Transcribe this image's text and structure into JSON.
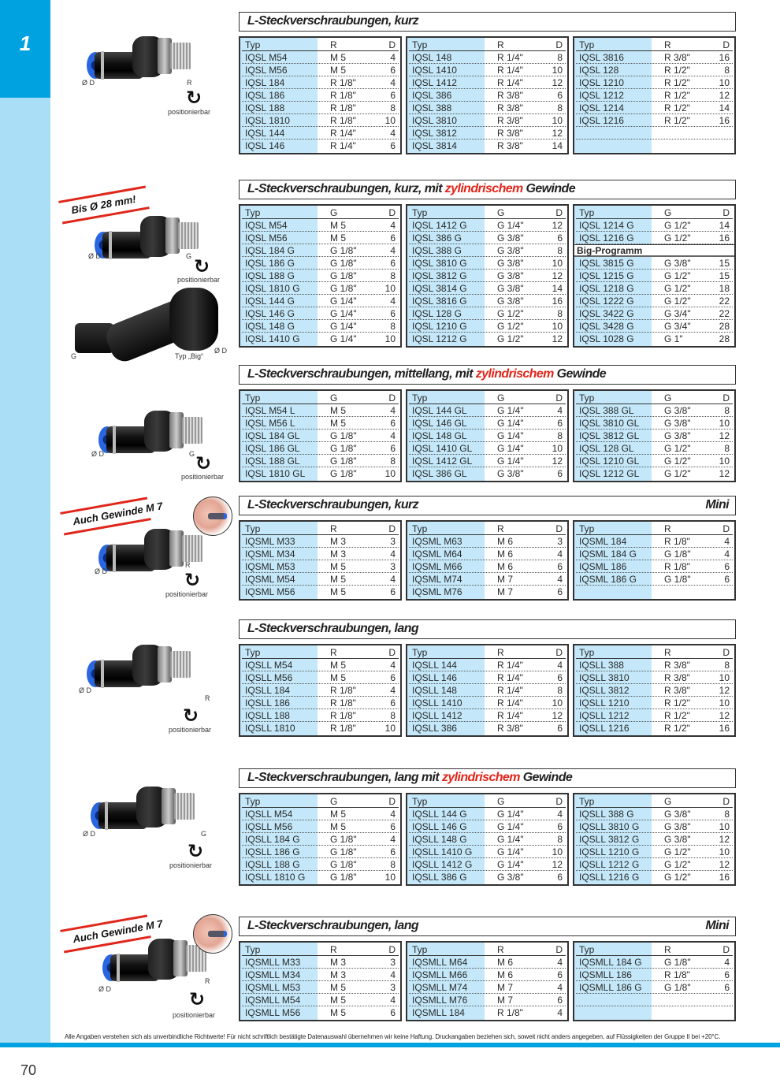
{
  "chapter_tab": "1",
  "page_number": "70",
  "footnote": "Alle Angaben verstehen sich als unverbindliche Richtwerte! Für nicht schriftlich bestätigte Datenauswahl übernehmen wir keine Haftung. Druckangaben beziehen sich, soweit nicht anders angegeben, auf Flüssigkeiten der Gruppe II bei +20°C.",
  "colors": {
    "accent_blue": "#00a3e0",
    "strip_blue": "#a9def6",
    "typ_column": "#c4e8f9",
    "highlight_red": "#e0261b"
  },
  "sections": [
    {
      "title_prefix": "L-Steckverschraubungen, kurz",
      "title_highlight": "",
      "title_suffix": "",
      "badge": "",
      "image": {
        "diameter_label": "Ø D",
        "thread_label": "R",
        "positionable_label": "positionierbar",
        "rotate_icon": "rotate-arrow-icon"
      },
      "tables": [
        {
          "headers": [
            "Typ",
            "R",
            "D"
          ],
          "rows": [
            [
              "IQSL M54",
              "M 5",
              "4"
            ],
            [
              "IQSL M56",
              "M 5",
              "6"
            ],
            [
              "IQSL 184",
              "R 1/8\"",
              "4"
            ],
            [
              "IQSL 186",
              "R 1/8\"",
              "6"
            ],
            [
              "IQSL 188",
              "R 1/8\"",
              "8"
            ],
            [
              "IQSL 1810",
              "R 1/8\"",
              "10"
            ],
            [
              "IQSL 144",
              "R 1/4\"",
              "4"
            ],
            [
              "IQSL 146",
              "R 1/4\"",
              "6"
            ]
          ]
        },
        {
          "headers": [
            "Typ",
            "R",
            "D"
          ],
          "rows": [
            [
              "IQSL 148",
              "R 1/4\"",
              "8"
            ],
            [
              "IQSL 1410",
              "R 1/4\"",
              "10"
            ],
            [
              "IQSL 1412",
              "R 1/4\"",
              "12"
            ],
            [
              "IQSL 386",
              "R 3/8\"",
              "6"
            ],
            [
              "IQSL 388",
              "R 3/8\"",
              "8"
            ],
            [
              "IQSL 3810",
              "R 3/8\"",
              "10"
            ],
            [
              "IQSL 3812",
              "R 3/8\"",
              "12"
            ],
            [
              "IQSL 3814",
              "R 3/8\"",
              "14"
            ]
          ]
        },
        {
          "headers": [
            "Typ",
            "R",
            "D"
          ],
          "rows": [
            [
              "IQSL 3816",
              "R 3/8\"",
              "16"
            ],
            [
              "IQSL 128",
              "R 1/2\"",
              "8"
            ],
            [
              "IQSL 1210",
              "R 1/2\"",
              "10"
            ],
            [
              "IQSL 1212",
              "R 1/2\"",
              "12"
            ],
            [
              "IQSL 1214",
              "R 1/2\"",
              "14"
            ],
            [
              "IQSL 1216",
              "R 1/2\"",
              "16"
            ]
          ]
        }
      ]
    },
    {
      "title_prefix": "L-Steckverschraubungen, kurz, mit ",
      "title_highlight": "zylindrischem",
      "title_suffix": " Gewinde",
      "badge": "",
      "image": {
        "banner": "Bis Ø 28 mm!",
        "diameter_label": "Ø D",
        "thread_label": "G",
        "positionable_label": "positionierbar",
        "big_thread_label": "G",
        "big_type_label": "Typ „Big“",
        "big_diameter_label": "Ø D"
      },
      "tables": [
        {
          "headers": [
            "Typ",
            "G",
            "D"
          ],
          "rows": [
            [
              "IQSL M54",
              "M 5",
              "4"
            ],
            [
              "IQSL M56",
              "M 5",
              "6"
            ],
            [
              "IQSL 184 G",
              "G 1/8\"",
              "4"
            ],
            [
              "IQSL 186 G",
              "G 1/8\"",
              "6"
            ],
            [
              "IQSL 188 G",
              "G 1/8\"",
              "8"
            ],
            [
              "IQSL 1810 G",
              "G 1/8\"",
              "10"
            ],
            [
              "IQSL 144 G",
              "G 1/4\"",
              "4"
            ],
            [
              "IQSL 146 G",
              "G 1/4\"",
              "6"
            ],
            [
              "IQSL 148 G",
              "G 1/4\"",
              "8"
            ],
            [
              "IQSL 1410 G",
              "G 1/4\"",
              "10"
            ]
          ]
        },
        {
          "headers": [
            "Typ",
            "G",
            "D"
          ],
          "rows": [
            [
              "IQSL 1412 G",
              "G 1/4\"",
              "12"
            ],
            [
              "IQSL 386 G",
              "G 3/8\"",
              "6"
            ],
            [
              "IQSL 388 G",
              "G 3/8\"",
              "8"
            ],
            [
              "IQSL 3810 G",
              "G 3/8\"",
              "10"
            ],
            [
              "IQSL 3812 G",
              "G 3/8\"",
              "12"
            ],
            [
              "IQSL 3814 G",
              "G 3/8\"",
              "14"
            ],
            [
              "IQSL 3816 G",
              "G 3/8\"",
              "16"
            ],
            [
              "IQSL 128 G",
              "G 1/2\"",
              "8"
            ],
            [
              "IQSL 1210 G",
              "G 1/2\"",
              "10"
            ],
            [
              "IQSL 1212 G",
              "G 1/2\"",
              "12"
            ]
          ]
        },
        {
          "headers": [
            "Typ",
            "G",
            "D"
          ],
          "rows": [
            [
              "IQSL 1214 G",
              "G 1/2\"",
              "14"
            ],
            [
              "IQSL 1216 G",
              "G 1/2\"",
              "16"
            ]
          ],
          "subheading": "Big-Programm",
          "rows_after": [
            [
              "IQSL 3815 G",
              "G 3/8\"",
              "15"
            ],
            [
              "IQSL 1215 G",
              "G 1/2\"",
              "15"
            ],
            [
              "IQSL 1218 G",
              "G 1/2\"",
              "18"
            ],
            [
              "IQSL 1222 G",
              "G 1/2\"",
              "22"
            ],
            [
              "IQSL 3422 G",
              "G 3/4\"",
              "22"
            ],
            [
              "IQSL 3428 G",
              "G 3/4\"",
              "28"
            ],
            [
              "IQSL 1028 G",
              "G 1\"",
              "28"
            ]
          ]
        }
      ]
    },
    {
      "title_prefix": "L-Steckverschraubungen, mittellang, mit ",
      "title_highlight": "zylindrischem",
      "title_suffix": " Gewinde",
      "badge": "",
      "image": {
        "diameter_label": "Ø D",
        "thread_label": "G",
        "positionable_label": "positionierbar"
      },
      "tables": [
        {
          "headers": [
            "Typ",
            "G",
            "D"
          ],
          "rows": [
            [
              "IQSL M54 L",
              "M 5",
              "4"
            ],
            [
              "IQSL M56 L",
              "M 5",
              "6"
            ],
            [
              "IQSL 184 GL",
              "G 1/8\"",
              "4"
            ],
            [
              "IQSL 186 GL",
              "G 1/8\"",
              "6"
            ],
            [
              "IQSL 188 GL",
              "G 1/8\"",
              "8"
            ],
            [
              "IQSL 1810 GL",
              "G 1/8\"",
              "10"
            ]
          ]
        },
        {
          "headers": [
            "Typ",
            "G",
            "D"
          ],
          "rows": [
            [
              "IQSL 144 GL",
              "G 1/4\"",
              "4"
            ],
            [
              "IQSL 146 GL",
              "G 1/4\"",
              "6"
            ],
            [
              "IQSL 148 GL",
              "G 1/4\"",
              "8"
            ],
            [
              "IQSL 1410 GL",
              "G 1/4\"",
              "10"
            ],
            [
              "IQSL 1412 GL",
              "G 1/4\"",
              "12"
            ],
            [
              "IQSL 386 GL",
              "G 3/8\"",
              "6"
            ]
          ]
        },
        {
          "headers": [
            "Typ",
            "G",
            "D"
          ],
          "rows": [
            [
              "IQSL 388 GL",
              "G 3/8\"",
              "8"
            ],
            [
              "IQSL 3810 GL",
              "G 3/8\"",
              "10"
            ],
            [
              "IQSL 3812 GL",
              "G 3/8\"",
              "12"
            ],
            [
              "IQSL 128 GL",
              "G 1/2\"",
              "8"
            ],
            [
              "IQSL 1210 GL",
              "G 1/2\"",
              "10"
            ],
            [
              "IQSL 1212 GL",
              "G 1/2\"",
              "12"
            ]
          ]
        }
      ]
    },
    {
      "title_prefix": "L-Steckverschraubungen, kurz",
      "title_highlight": "",
      "title_suffix": "",
      "badge": "Mini",
      "image": {
        "banner": "Auch Gewinde M 7",
        "diameter_label": "Ø D",
        "thread_label": "R",
        "positionable_label": "positionierbar"
      },
      "tables": [
        {
          "headers": [
            "Typ",
            "R",
            "D"
          ],
          "rows": [
            [
              "IQSML M33",
              "M 3",
              "3"
            ],
            [
              "IQSML M34",
              "M 3",
              "4"
            ],
            [
              "IQSML M53",
              "M 5",
              "3"
            ],
            [
              "IQSML M54",
              "M 5",
              "4"
            ],
            [
              "IQSML M56",
              "M 5",
              "6"
            ]
          ]
        },
        {
          "headers": [
            "Typ",
            "R",
            "D"
          ],
          "rows": [
            [
              "IQSML M63",
              "M 6",
              "3"
            ],
            [
              "IQSML M64",
              "M 6",
              "4"
            ],
            [
              "IQSML M66",
              "M 6",
              "6"
            ],
            [
              "IQSML M74",
              "M 7",
              "4"
            ],
            [
              "IQSML M76",
              "M 7",
              "6"
            ]
          ]
        },
        {
          "headers": [
            "Typ",
            "R",
            "D"
          ],
          "rows": [
            [
              "IQSML 184",
              "R 1/8\"",
              "4"
            ],
            [
              "IQSML 184 G",
              "G 1/8\"",
              "4"
            ],
            [
              "IQSML 186",
              "R 1/8\"",
              "6"
            ],
            [
              "IQSML 186 G",
              "G 1/8\"",
              "6"
            ]
          ]
        }
      ]
    },
    {
      "title_prefix": "L-Steckverschraubungen, lang",
      "title_highlight": "",
      "title_suffix": "",
      "badge": "",
      "image": {
        "diameter_label": "Ø D",
        "thread_label": "R",
        "positionable_label": "positionierbar"
      },
      "tables": [
        {
          "headers": [
            "Typ",
            "R",
            "D"
          ],
          "rows": [
            [
              "IQSLL M54",
              "M 5",
              "4"
            ],
            [
              "IQSLL M56",
              "M 5",
              "6"
            ],
            [
              "IQSLL 184",
              "R 1/8\"",
              "4"
            ],
            [
              "IQSLL 186",
              "R 1/8\"",
              "6"
            ],
            [
              "IQSLL 188",
              "R 1/8\"",
              "8"
            ],
            [
              "IQSLL 1810",
              "R 1/8\"",
              "10"
            ]
          ]
        },
        {
          "headers": [
            "Typ",
            "R",
            "D"
          ],
          "rows": [
            [
              "IQSLL 144",
              "R 1/4\"",
              "4"
            ],
            [
              "IQSLL 146",
              "R 1/4\"",
              "6"
            ],
            [
              "IQSLL 148",
              "R 1/4\"",
              "8"
            ],
            [
              "IQSLL 1410",
              "R 1/4\"",
              "10"
            ],
            [
              "IQSLL 1412",
              "R 1/4\"",
              "12"
            ],
            [
              "IQSLL 386",
              "R 3/8\"",
              "6"
            ]
          ]
        },
        {
          "headers": [
            "Typ",
            "R",
            "D"
          ],
          "rows": [
            [
              "IQSLL 388",
              "R 3/8\"",
              "8"
            ],
            [
              "IQSLL 3810",
              "R 3/8\"",
              "10"
            ],
            [
              "IQSLL 3812",
              "R 3/8\"",
              "12"
            ],
            [
              "IQSLL 1210",
              "R 1/2\"",
              "10"
            ],
            [
              "IQSLL 1212",
              "R 1/2\"",
              "12"
            ],
            [
              "IQSLL 1216",
              "R 1/2\"",
              "16"
            ]
          ]
        }
      ]
    },
    {
      "title_prefix": "L-Steckverschraubungen, lang mit ",
      "title_highlight": "zylindrischem",
      "title_suffix": " Gewinde",
      "badge": "",
      "image": {
        "diameter_label": "Ø D",
        "thread_label": "G",
        "positionable_label": "positionierbar"
      },
      "tables": [
        {
          "headers": [
            "Typ",
            "G",
            "D"
          ],
          "rows": [
            [
              "IQSLL M54",
              "M 5",
              "4"
            ],
            [
              "IQSLL M56",
              "M 5",
              "6"
            ],
            [
              "IQSLL 184 G",
              "G 1/8\"",
              "4"
            ],
            [
              "IQSLL 186 G",
              "G 1/8\"",
              "6"
            ],
            [
              "IQSLL 188 G",
              "G 1/8\"",
              "8"
            ],
            [
              "IQSLL 1810 G",
              "G 1/8\"",
              "10"
            ]
          ]
        },
        {
          "headers": [
            "Typ",
            "G",
            "D"
          ],
          "rows": [
            [
              "IQSLL 144 G",
              "G 1/4\"",
              "4"
            ],
            [
              "IQSLL 146 G",
              "G 1/4\"",
              "6"
            ],
            [
              "IQSLL 148 G",
              "G 1/4\"",
              "8"
            ],
            [
              "IQSLL 1410 G",
              "G 1/4\"",
              "10"
            ],
            [
              "IQSLL 1412 G",
              "G 1/4\"",
              "12"
            ],
            [
              "IQSLL 386 G",
              "G 3/8\"",
              "6"
            ]
          ]
        },
        {
          "headers": [
            "Typ",
            "G",
            "D"
          ],
          "rows": [
            [
              "IQSLL 388 G",
              "G 3/8\"",
              "8"
            ],
            [
              "IQSLL 3810 G",
              "G 3/8\"",
              "10"
            ],
            [
              "IQSLL 3812 G",
              "G 3/8\"",
              "12"
            ],
            [
              "IQSLL 1210 G",
              "G 1/2\"",
              "10"
            ],
            [
              "IQSLL 1212 G",
              "G 1/2\"",
              "12"
            ],
            [
              "IQSLL 1216 G",
              "G 1/2\"",
              "16"
            ]
          ]
        }
      ]
    },
    {
      "title_prefix": "L-Steckverschraubungen, lang",
      "title_highlight": "",
      "title_suffix": "",
      "badge": "Mini",
      "image": {
        "banner": "Auch Gewinde M 7",
        "diameter_label": "Ø D",
        "thread_label": "R",
        "positionable_label": "positionierbar"
      },
      "tables": [
        {
          "headers": [
            "Typ",
            "R",
            "D"
          ],
          "rows": [
            [
              "IQSMLL M33",
              "M 3",
              "3"
            ],
            [
              "IQSMLL M34",
              "M 3",
              "4"
            ],
            [
              "IQSMLL M53",
              "M 5",
              "3"
            ],
            [
              "IQSMLL M54",
              "M 5",
              "4"
            ],
            [
              "IQSMLL M56",
              "M 5",
              "6"
            ]
          ]
        },
        {
          "headers": [
            "Typ",
            "R",
            "D"
          ],
          "rows": [
            [
              "IQSMLL M64",
              "M 6",
              "4"
            ],
            [
              "IQSMLL M66",
              "M 6",
              "6"
            ],
            [
              "IQSMLL M74",
              "M 7",
              "4"
            ],
            [
              "IQSMLL M76",
              "M 7",
              "6"
            ],
            [
              "IQSMLL 184",
              "R 1/8\"",
              "4"
            ]
          ]
        },
        {
          "headers": [
            "Typ",
            "R",
            "D"
          ],
          "rows": [
            [
              "IQSMLL 184 G",
              "G 1/8\"",
              "4"
            ],
            [
              "IQSMLL 186",
              "R 1/8\"",
              "6"
            ],
            [
              "IQSMLL 186 G",
              "G 1/8\"",
              "6"
            ]
          ]
        }
      ]
    }
  ]
}
